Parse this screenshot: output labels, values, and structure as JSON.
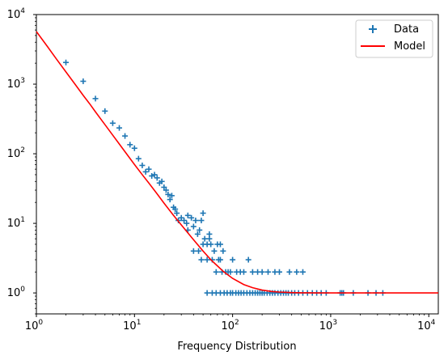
{
  "chart_data": {
    "type": "scatter",
    "xlabel": "Frequency Distribution",
    "ylabel": "",
    "title": "",
    "xscale": "log",
    "yscale": "log",
    "xlim": [
      1,
      12500
    ],
    "ylim": [
      0.5,
      10000
    ],
    "x_ticks": [
      {
        "value": 1,
        "base": "10",
        "exp": "0"
      },
      {
        "value": 10,
        "base": "10",
        "exp": "1"
      },
      {
        "value": 100,
        "base": "10",
        "exp": "2"
      },
      {
        "value": 1000,
        "base": "10",
        "exp": "3"
      },
      {
        "value": 10000,
        "base": "10",
        "exp": "4"
      }
    ],
    "y_ticks": [
      {
        "value": 1,
        "base": "10",
        "exp": "0"
      },
      {
        "value": 10,
        "base": "10",
        "exp": "1"
      },
      {
        "value": 100,
        "base": "10",
        "exp": "2"
      },
      {
        "value": 1000,
        "base": "10",
        "exp": "3"
      },
      {
        "value": 10000,
        "base": "10",
        "exp": "4"
      }
    ],
    "grid": false,
    "legend": {
      "placement": "top-right",
      "entries": [
        "Data",
        "Model"
      ]
    },
    "colors": {
      "data": "#1f77b4",
      "model": "#ff0000"
    },
    "series": [
      {
        "name": "Data",
        "type": "scatter",
        "marker": "+",
        "points": [
          [
            2,
            2050
          ],
          [
            3,
            1100
          ],
          [
            4,
            620
          ],
          [
            5,
            410
          ],
          [
            6,
            275
          ],
          [
            7,
            235
          ],
          [
            8,
            180
          ],
          [
            9,
            135
          ],
          [
            10,
            120
          ],
          [
            11,
            85
          ],
          [
            12,
            68
          ],
          [
            13,
            55
          ],
          [
            14,
            60
          ],
          [
            15,
            48
          ],
          [
            16,
            50
          ],
          [
            17,
            45
          ],
          [
            18,
            38
          ],
          [
            19,
            40
          ],
          [
            20,
            33
          ],
          [
            21,
            30
          ],
          [
            22,
            26
          ],
          [
            23,
            22
          ],
          [
            24,
            25
          ],
          [
            25,
            17
          ],
          [
            26,
            16
          ],
          [
            27,
            14
          ],
          [
            28,
            11
          ],
          [
            30,
            12
          ],
          [
            32,
            11
          ],
          [
            34,
            10
          ],
          [
            35,
            13
          ],
          [
            38,
            12
          ],
          [
            40,
            9
          ],
          [
            42,
            11
          ],
          [
            44,
            7
          ],
          [
            46,
            8
          ],
          [
            48,
            11
          ],
          [
            50,
            14
          ],
          [
            52,
            6
          ],
          [
            55,
            5
          ],
          [
            58,
            7
          ],
          [
            60,
            5
          ],
          [
            65,
            4
          ],
          [
            70,
            5
          ],
          [
            75,
            3
          ],
          [
            80,
            4
          ],
          [
            35,
            8
          ],
          [
            40,
            4
          ],
          [
            45,
            4
          ],
          [
            48,
            3
          ],
          [
            50,
            5
          ],
          [
            55,
            3
          ],
          [
            58,
            6
          ],
          [
            62,
            3
          ],
          [
            68,
            2
          ],
          [
            72,
            3
          ],
          [
            75,
            5
          ],
          [
            78,
            2
          ],
          [
            85,
            2
          ],
          [
            90,
            2
          ],
          [
            95,
            2
          ],
          [
            100,
            3
          ],
          [
            110,
            2
          ],
          [
            120,
            2
          ],
          [
            130,
            2
          ],
          [
            145,
            3
          ],
          [
            160,
            2
          ],
          [
            180,
            2
          ],
          [
            200,
            2
          ],
          [
            230,
            2
          ],
          [
            270,
            2
          ],
          [
            300,
            2
          ],
          [
            380,
            2
          ],
          [
            450,
            2
          ],
          [
            520,
            2
          ],
          [
            55,
            1
          ],
          [
            62,
            1
          ],
          [
            68,
            1
          ],
          [
            75,
            1
          ],
          [
            82,
            1
          ],
          [
            88,
            1
          ],
          [
            95,
            1
          ],
          [
            100,
            1
          ],
          [
            108,
            1
          ],
          [
            115,
            1
          ],
          [
            122,
            1
          ],
          [
            130,
            1
          ],
          [
            140,
            1
          ],
          [
            150,
            1
          ],
          [
            160,
            1
          ],
          [
            170,
            1
          ],
          [
            180,
            1
          ],
          [
            190,
            1
          ],
          [
            200,
            1
          ],
          [
            210,
            1
          ],
          [
            225,
            1
          ],
          [
            240,
            1
          ],
          [
            255,
            1
          ],
          [
            270,
            1
          ],
          [
            290,
            1
          ],
          [
            310,
            1
          ],
          [
            330,
            1
          ],
          [
            350,
            1
          ],
          [
            370,
            1
          ],
          [
            400,
            1
          ],
          [
            430,
            1
          ],
          [
            470,
            1
          ],
          [
            520,
            1
          ],
          [
            580,
            1
          ],
          [
            650,
            1
          ],
          [
            720,
            1
          ],
          [
            800,
            1
          ],
          [
            900,
            1
          ],
          [
            1250,
            1
          ],
          [
            1300,
            1
          ],
          [
            1350,
            1
          ],
          [
            1700,
            1
          ],
          [
            2400,
            1
          ],
          [
            2900,
            1
          ],
          [
            3400,
            1
          ]
        ]
      },
      {
        "name": "Model",
        "type": "line",
        "points": [
          [
            1,
            5700
          ],
          [
            1.3,
            3450
          ],
          [
            1.6,
            2300
          ],
          [
            2,
            1500
          ],
          [
            2.5,
            980
          ],
          [
            3,
            690
          ],
          [
            3.5,
            520
          ],
          [
            4,
            400
          ],
          [
            5,
            262
          ],
          [
            6,
            185
          ],
          [
            7,
            138
          ],
          [
            8,
            107
          ],
          [
            10,
            70
          ],
          [
            12,
            50
          ],
          [
            14,
            38
          ],
          [
            17,
            26.5
          ],
          [
            20,
            19.5
          ],
          [
            25,
            13
          ],
          [
            30,
            9.5
          ],
          [
            35,
            7.3
          ],
          [
            40,
            5.8
          ],
          [
            50,
            4.0
          ],
          [
            60,
            3.0
          ],
          [
            70,
            2.45
          ],
          [
            80,
            2.05
          ],
          [
            100,
            1.62
          ],
          [
            130,
            1.32
          ],
          [
            160,
            1.19
          ],
          [
            200,
            1.1
          ],
          [
            250,
            1.05
          ],
          [
            300,
            1.03
          ],
          [
            400,
            1.012
          ],
          [
            500,
            1.005
          ],
          [
            700,
            1.002
          ],
          [
            1000,
            1.0
          ],
          [
            3000,
            1.0
          ],
          [
            12500,
            1.0
          ]
        ]
      }
    ]
  }
}
